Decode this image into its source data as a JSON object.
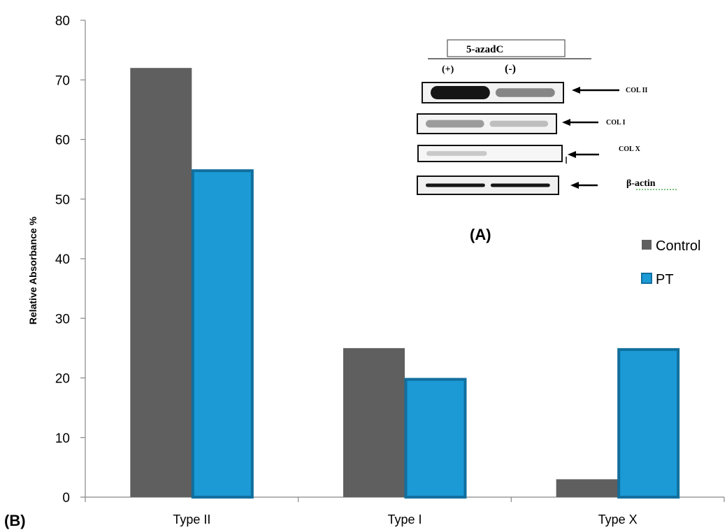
{
  "chart_data": {
    "type": "bar",
    "ylabel": "Relative Absorbance %",
    "xlabel": "",
    "ylim": [
      0,
      80
    ],
    "yticks": [
      0,
      10,
      20,
      30,
      40,
      50,
      60,
      70,
      80
    ],
    "categories": [
      "Type II",
      "Type I",
      "Type X"
    ],
    "series": [
      {
        "name": "Control",
        "values": [
          72,
          25,
          3
        ],
        "color": "#5f5f5f"
      },
      {
        "name": "PT",
        "values": [
          55,
          20,
          25
        ],
        "color": "#1b9ad6",
        "border": "#116f9d"
      }
    ],
    "legend_position": "right",
    "grid": false,
    "panel_labels": {
      "chart": "(B)",
      "inset": "(A)"
    }
  },
  "inset": {
    "title": "5-azadC",
    "lanes": [
      "(+)",
      "(-)"
    ],
    "bands": [
      {
        "label": "COL II",
        "lane_intensity": [
          0.95,
          0.45
        ]
      },
      {
        "label": "COL I",
        "lane_intensity": [
          0.35,
          0.2
        ]
      },
      {
        "label": "COL X",
        "lane_intensity": [
          0.15,
          0.0
        ]
      },
      {
        "label": "β-actin",
        "lane_intensity": [
          0.95,
          0.95
        ]
      }
    ]
  }
}
